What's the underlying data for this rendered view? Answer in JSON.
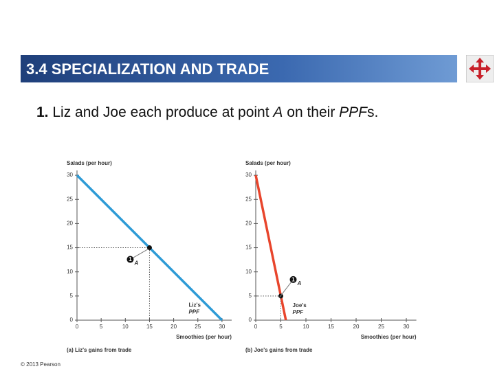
{
  "header": {
    "title": "3.4  SPECIALIZATION AND TRADE"
  },
  "bullet": [
    "1.",
    " Liz and Joe each produce at point ",
    "A",
    " on their ",
    "PPF",
    "s."
  ],
  "footer": "© 2013 Pearson",
  "chart_data": [
    {
      "type": "line",
      "ylabel": "Salads (per hour)",
      "xlabel": "Smoothies (per hour)",
      "caption": "(a) Liz's gains from trade",
      "xlim": [
        0,
        32
      ],
      "ylim": [
        0,
        31
      ],
      "xticks": [
        0,
        5,
        10,
        15,
        20,
        25,
        30
      ],
      "yticks": [
        0,
        5,
        10,
        15,
        20,
        25,
        30
      ],
      "line": {
        "x": [
          0,
          30
        ],
        "values": [
          30,
          0
        ],
        "color": "#2e9bd6"
      },
      "point": {
        "x": [
          15
        ],
        "values": [
          15
        ],
        "color": "#111111"
      },
      "annotations": [
        "1",
        "A",
        "Liz's",
        "PPF"
      ]
    },
    {
      "type": "line",
      "ylabel": "Salads (per hour)",
      "xlabel": "Smoothies (per hour)",
      "caption": "(b) Joe's gains from trade",
      "xlim": [
        0,
        32
      ],
      "ylim": [
        0,
        31
      ],
      "xticks": [
        0,
        5,
        10,
        15,
        20,
        25,
        30
      ],
      "yticks": [
        0,
        5,
        10,
        15,
        20,
        25,
        30
      ],
      "line": {
        "x": [
          0,
          6
        ],
        "values": [
          30,
          0
        ],
        "color": "#e8452c"
      },
      "point": {
        "x": [
          5
        ],
        "values": [
          5
        ],
        "color": "#111111"
      },
      "annotations": [
        "1",
        "A",
        "Joe's",
        "PPF"
      ]
    }
  ]
}
